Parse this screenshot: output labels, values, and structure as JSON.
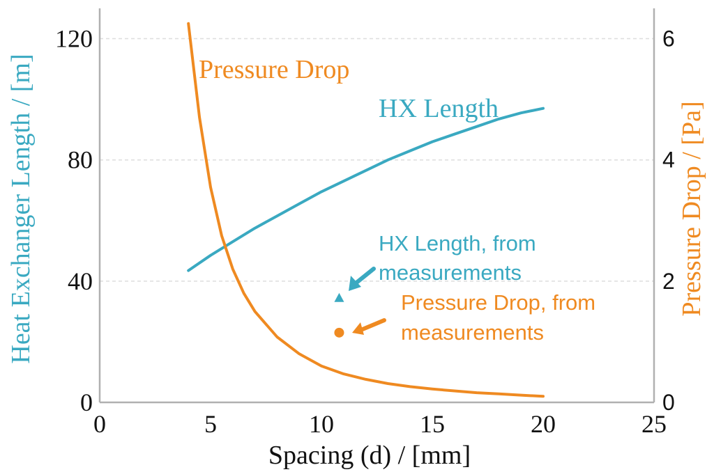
{
  "colors": {
    "hx": "#3aa9c1",
    "pressure": "#ef8a21",
    "axis": "#b0b0b0",
    "grid": "#dddddd"
  },
  "chart_data": {
    "type": "line",
    "title": "",
    "xlabel": "Spacing (d) / [mm]",
    "ylabel": "Heat Exchanger Length / [m]",
    "y2label": "Pressure Drop / [Pa]",
    "xlim": [
      0,
      25
    ],
    "ylim": [
      0,
      130
    ],
    "y2lim": [
      0,
      6.5
    ],
    "xticks": [
      0,
      5,
      10,
      15,
      20,
      25
    ],
    "xtick_labels": [
      "0",
      "5",
      "10",
      "15",
      "20",
      "25"
    ],
    "yticks": [
      0,
      40,
      80,
      120
    ],
    "ytick_labels": [
      "0",
      "40",
      "80",
      "120"
    ],
    "y2ticks": [
      0,
      2,
      4,
      6
    ],
    "y2tick_labels": [
      "0",
      "2",
      "4",
      "6"
    ],
    "grid": "horizontal dashed",
    "series": [
      {
        "name": "HX Length",
        "axis": "left",
        "color": "#3aa9c1",
        "x": [
          4,
          5,
          6,
          7,
          8,
          9,
          10,
          11,
          12,
          13,
          14,
          15,
          16,
          17,
          18,
          19,
          20
        ],
        "y": [
          43.5,
          48.5,
          53,
          57.5,
          61.5,
          65.5,
          69.5,
          73,
          76.5,
          80,
          83,
          86,
          88.5,
          91,
          93.5,
          95.5,
          97
        ]
      },
      {
        "name": "Pressure Drop",
        "axis": "right",
        "color": "#ef8a21",
        "x": [
          4,
          4.5,
          5,
          5.5,
          6,
          6.5,
          7,
          8,
          9,
          10,
          11,
          12,
          13,
          14,
          15,
          16,
          17,
          18,
          19,
          20
        ],
        "y": [
          6.25,
          4.7,
          3.55,
          2.75,
          2.2,
          1.8,
          1.5,
          1.08,
          0.8,
          0.6,
          0.47,
          0.38,
          0.31,
          0.26,
          0.22,
          0.19,
          0.16,
          0.14,
          0.12,
          0.1
        ]
      }
    ],
    "points": [
      {
        "name": "HX Length, from measurements",
        "axis": "left",
        "x": 10.8,
        "y": 34.5,
        "marker": "triangle",
        "color": "#3aa9c1"
      },
      {
        "name": "Pressure Drop, from measurements",
        "axis": "right",
        "x": 10.8,
        "y": 1.15,
        "marker": "circle",
        "color": "#ef8a21"
      }
    ],
    "annotations": {
      "pressure_curve": "Pressure Drop",
      "hx_curve": "HX Length",
      "hx_meas_line1": "HX Length, from",
      "hx_meas_line2": "measurements",
      "pd_meas_line1": "Pressure Drop, from",
      "pd_meas_line2": "measurements"
    }
  }
}
